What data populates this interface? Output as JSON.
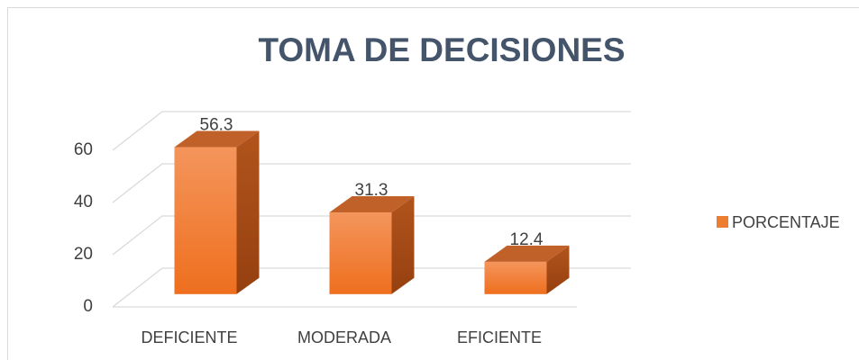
{
  "chart_data": {
    "type": "bar3d",
    "title": "TOMA DE DECISIONES",
    "categories": [
      "DEFICIENTE",
      "MODERADA",
      "EFICIENTE"
    ],
    "series": [
      {
        "name": "PORCENTAJE",
        "color": "#ed7d31",
        "values": [
          56.3,
          31.3,
          12.4
        ]
      }
    ],
    "ylim": [
      0,
      60
    ],
    "yticks": [
      0,
      20,
      40,
      60
    ],
    "grid": true,
    "legend": "right"
  }
}
